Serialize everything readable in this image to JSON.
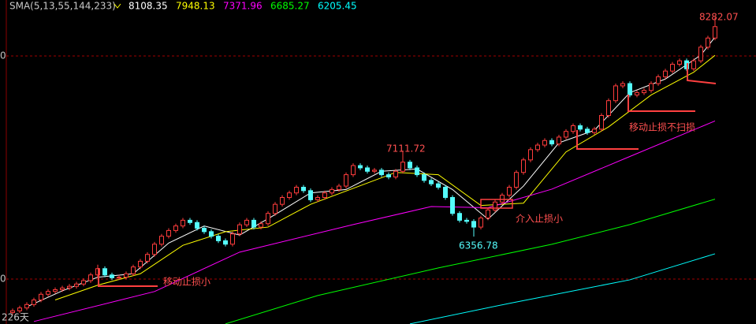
{
  "chart_data": {
    "type": "candlestick",
    "title": "SMA(5,13,55,144,233)",
    "period_label": "226天",
    "axis_labels": [
      "0",
      "0"
    ],
    "annotations": [
      "移动止损小",
      "介入止损小",
      "移动止损不扫损"
    ],
    "ylim": [
      5589,
      8434
    ],
    "opens": [
      5690,
      5705,
      5730,
      5760,
      5800,
      5850,
      5875,
      5890,
      5905,
      5920,
      5940,
      5970,
      6020,
      6075,
      6020,
      5995,
      6000,
      6030,
      6090,
      6140,
      6200,
      6290,
      6360,
      6410,
      6450,
      6500,
      6480,
      6430,
      6400,
      6360,
      6320,
      6290,
      6380,
      6460,
      6500,
      6440,
      6470,
      6560,
      6640,
      6700,
      6740,
      6790,
      6760,
      6680,
      6700,
      6740,
      6770,
      6800,
      6900,
      6980,
      6960,
      6930,
      6940,
      6900,
      6880,
      6930,
      7010,
      6960,
      6900,
      6850,
      6820,
      6790,
      6700,
      6560,
      6500,
      6490,
      6440,
      6520,
      6590,
      6660,
      6720,
      6790,
      6920,
      7030,
      7120,
      7160,
      7200,
      7170,
      7230,
      7280,
      7330,
      7300,
      7270,
      7300,
      7420,
      7550,
      7680,
      7700,
      7600,
      7620,
      7640,
      7700,
      7760,
      7810,
      7870,
      7900,
      7830,
      7900,
      8020,
      8100
    ],
    "highs": [
      5725,
      5750,
      5780,
      5820,
      5870,
      5895,
      5910,
      5925,
      5940,
      5960,
      5990,
      6040,
      6110,
      6095,
      6040,
      6020,
      6050,
      6110,
      6160,
      6220,
      6310,
      6380,
      6430,
      6470,
      6520,
      6520,
      6500,
      6450,
      6420,
      6380,
      6340,
      6400,
      6480,
      6520,
      6520,
      6490,
      6580,
      6660,
      6720,
      6760,
      6810,
      6810,
      6780,
      6720,
      6760,
      6790,
      6820,
      6920,
      7000,
      7000,
      6980,
      6960,
      6960,
      6920,
      6950,
      7111.72,
      7030,
      6980,
      6920,
      6870,
      6840,
      6810,
      6720,
      6580,
      6520,
      6510,
      6540,
      6610,
      6680,
      6740,
      6810,
      6940,
      7050,
      7140,
      7180,
      7220,
      7220,
      7250,
      7300,
      7350,
      7350,
      7320,
      7320,
      7440,
      7570,
      7700,
      7720,
      7720,
      7640,
      7660,
      7720,
      7780,
      7830,
      7890,
      7920,
      7920,
      7920,
      8040,
      8120,
      8282.07
    ],
    "lows": [
      5670,
      5685,
      5710,
      5740,
      5780,
      5830,
      5855,
      5870,
      5885,
      5900,
      5920,
      5950,
      6000,
      6000,
      5975,
      5975,
      5980,
      6010,
      6070,
      6120,
      6180,
      6270,
      6340,
      6390,
      6430,
      6460,
      6410,
      6380,
      6340,
      6300,
      6270,
      6270,
      6360,
      6440,
      6420,
      6420,
      6450,
      6540,
      6620,
      6680,
      6720,
      6740,
      6660,
      6660,
      6680,
      6720,
      6750,
      6780,
      6880,
      6940,
      6910,
      6910,
      6880,
      6860,
      6860,
      6910,
      6940,
      6880,
      6830,
      6800,
      6770,
      6680,
      6540,
      6480,
      6470,
      6356.78,
      6420,
      6500,
      6570,
      6640,
      6700,
      6770,
      6900,
      7010,
      7100,
      7140,
      7150,
      7150,
      7210,
      7260,
      7280,
      7250,
      7250,
      7280,
      7400,
      7530,
      7660,
      7580,
      7580,
      7600,
      7620,
      7680,
      7740,
      7790,
      7850,
      7810,
      7810,
      7880,
      8000,
      8080
    ],
    "closes": [
      5705,
      5730,
      5760,
      5800,
      5850,
      5875,
      5890,
      5905,
      5920,
      5940,
      5970,
      6020,
      6075,
      6020,
      5995,
      6000,
      6030,
      6090,
      6140,
      6200,
      6290,
      6360,
      6410,
      6450,
      6500,
      6480,
      6430,
      6400,
      6360,
      6320,
      6290,
      6380,
      6460,
      6500,
      6440,
      6470,
      6560,
      6640,
      6700,
      6740,
      6790,
      6760,
      6680,
      6700,
      6740,
      6770,
      6800,
      6900,
      6980,
      6960,
      6930,
      6940,
      6900,
      6880,
      6930,
      7010,
      6960,
      6900,
      6850,
      6820,
      6790,
      6700,
      6560,
      6500,
      6490,
      6440,
      6520,
      6590,
      6660,
      6720,
      6790,
      6920,
      7030,
      7120,
      7160,
      7200,
      7170,
      7230,
      7280,
      7330,
      7300,
      7270,
      7300,
      7420,
      7550,
      7680,
      7700,
      7600,
      7620,
      7640,
      7700,
      7760,
      7810,
      7870,
      7900,
      7830,
      7900,
      8020,
      8100,
      8200
    ],
    "up_color": "#ff3c3c",
    "down_color": "#54fcfc",
    "series": [
      {
        "color": "#ffffff",
        "x": [
          2,
          7,
          12,
          17,
          22,
          27,
          32,
          37,
          42,
          47,
          52,
          57,
          62,
          67,
          72,
          77,
          82,
          87,
          92,
          97,
          99
        ],
        "values": [
          5740,
          5880,
          6000,
          6030,
          6300,
          6450,
          6370,
          6550,
          6740,
          6770,
          6930,
          6950,
          6770,
          6510,
          6800,
          7180,
          7290,
          7620,
          7740,
          7950,
          8108.35
        ]
      },
      {
        "color": "#ffff00",
        "x": [
          6,
          12,
          18,
          24,
          30,
          36,
          42,
          48,
          54,
          60,
          66,
          72,
          78,
          84,
          90,
          96,
          99
        ],
        "values": [
          5800,
          5930,
          6030,
          6280,
          6400,
          6440,
          6640,
          6780,
          6920,
          6900,
          6630,
          6650,
          7100,
          7320,
          7600,
          7800,
          7948.13
        ]
      },
      {
        "color": "#ff00ff",
        "x": [
          3,
          20,
          32,
          48,
          59,
          67,
          76,
          87,
          99
        ],
        "values": [
          5611,
          5874,
          6220,
          6462,
          6620,
          6610,
          6773,
          7060,
          7371.96
        ]
      },
      {
        "color": "#00ff00",
        "x": [
          30,
          43,
          60,
          76,
          87,
          99
        ],
        "values": [
          5590,
          5839,
          6081,
          6289,
          6462,
          6685.27
        ]
      },
      {
        "color": "#00ffff",
        "x": [
          56,
          70,
          87,
          99
        ],
        "values": [
          5590,
          5770,
          5977,
          6205.45
        ]
      }
    ]
  }
}
